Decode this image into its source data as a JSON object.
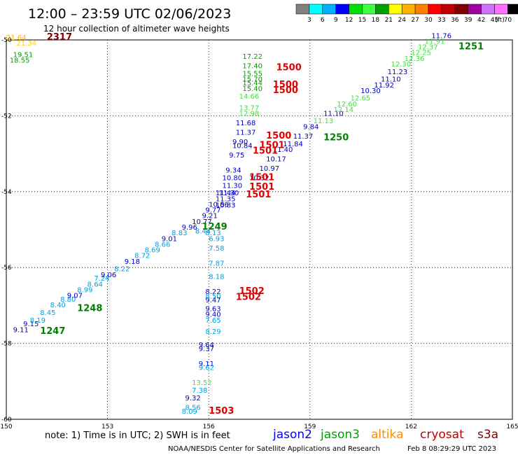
{
  "header": {
    "title": "12:00 – 23:59 UTC 02/06/2023",
    "subtitle": "12 hour collection of altimeter wave heights"
  },
  "legend": {
    "ticks": [
      "3",
      "6",
      "9",
      "12",
      "15",
      "18",
      "21",
      "24",
      "27",
      "30",
      "33",
      "36",
      "39",
      "42",
      "45",
      "70"
    ],
    "unit": "(ft)",
    "colors": [
      "#808080",
      "#00ffff",
      "#00b0ff",
      "#0000ff",
      "#00e000",
      "#40ff40",
      "#00a000",
      "#ffff00",
      "#ffb000",
      "#ff8000",
      "#ff0000",
      "#c00000",
      "#800000",
      "#a000a0",
      "#d070ff",
      "#ff70ff",
      "#000000"
    ]
  },
  "chart_data": {
    "type": "scatter",
    "xlim": [
      150,
      165
    ],
    "ylim": [
      -60,
      -50
    ],
    "xticks": [
      "150",
      "153",
      "156",
      "159",
      "162",
      "165"
    ],
    "yticks": [
      "-50",
      "-52",
      "-54",
      "-56",
      "-58",
      "-60"
    ],
    "grid": true,
    "tracks": [
      {
        "name": "1247",
        "color": "#008000",
        "label": {
          "text": "1247",
          "x": 151.0,
          "y": -57.75
        },
        "points": [
          {
            "lon": 150.2,
            "lat": -57.7,
            "v": "9.11",
            "c": "#0000c0"
          },
          {
            "lon": 150.5,
            "lat": -57.55,
            "v": "9.15",
            "c": "#0000c0"
          },
          {
            "lon": 150.7,
            "lat": -57.45,
            "v": "8.19",
            "c": "#00a0e0"
          },
          {
            "lon": 151.0,
            "lat": -57.25,
            "v": "8.45",
            "c": "#00a0e0"
          },
          {
            "lon": 151.3,
            "lat": -57.05,
            "v": "8.40",
            "c": "#00a0e0"
          },
          {
            "lon": 151.6,
            "lat": -56.9,
            "v": "8.80",
            "c": "#00a0e0"
          },
          {
            "lon": 151.8,
            "lat": -56.8,
            "v": "9.07",
            "c": "#0000c0"
          },
          {
            "lon": 152.1,
            "lat": -56.65,
            "v": "8.99",
            "c": "#00a0e0"
          },
          {
            "lon": 152.4,
            "lat": -56.5,
            "v": "8.64",
            "c": "#00a0e0"
          },
          {
            "lon": 152.6,
            "lat": -56.35,
            "v": "7.24",
            "c": "#00a0e0"
          },
          {
            "lon": 152.8,
            "lat": -56.25,
            "v": "9.06",
            "c": "#0000c0"
          },
          {
            "lon": 153.2,
            "lat": -56.1,
            "v": "8.22",
            "c": "#00a0e0"
          },
          {
            "lon": 153.5,
            "lat": -55.9,
            "v": "9.18",
            "c": "#0000c0"
          },
          {
            "lon": 153.8,
            "lat": -55.75,
            "v": "8.72",
            "c": "#00a0e0"
          },
          {
            "lon": 154.1,
            "lat": -55.6,
            "v": "8.69",
            "c": "#00a0e0"
          },
          {
            "lon": 154.4,
            "lat": -55.45,
            "v": "8.66",
            "c": "#00a0e0"
          },
          {
            "lon": 154.6,
            "lat": -55.3,
            "v": "9.01",
            "c": "#0000c0"
          },
          {
            "lon": 154.9,
            "lat": -55.15,
            "v": "8.83",
            "c": "#00a0e0"
          },
          {
            "lon": 155.2,
            "lat": -55.0,
            "v": "9.96",
            "c": "#0000c0"
          }
        ]
      },
      {
        "name": "1248",
        "color": "#008000",
        "label": {
          "text": "1248",
          "x": 152.1,
          "y": -57.15
        },
        "points": []
      },
      {
        "name": "1249",
        "color": "#008000",
        "label": {
          "text": "1249",
          "x": 155.8,
          "y": -55.0
        },
        "points": [
          {
            "lon": 155.5,
            "lat": -54.85,
            "v": "10.77",
            "c": "#0000c0"
          },
          {
            "lon": 155.8,
            "lat": -54.7,
            "v": "9.21",
            "c": "#0000c0"
          },
          {
            "lon": 155.9,
            "lat": -54.55,
            "v": "9.77",
            "c": "#0000c0"
          },
          {
            "lon": 156.0,
            "lat": -54.4,
            "v": "10.86",
            "c": "#0000c0"
          },
          {
            "lon": 156.2,
            "lat": -54.42,
            "v": "10.83",
            "c": "#0000c0"
          },
          {
            "lon": 156.2,
            "lat": -54.25,
            "v": "11.35",
            "c": "#0000c0"
          },
          {
            "lon": 156.2,
            "lat": -54.1,
            "v": "11.44",
            "c": "#0000c0"
          },
          {
            "lon": 156.3,
            "lat": -54.1,
            "v": "11.30",
            "c": "#0000c0"
          },
          {
            "lon": 156.4,
            "lat": -53.9,
            "v": "11.30",
            "c": "#0000c0"
          },
          {
            "lon": 156.4,
            "lat": -53.7,
            "v": "10.80",
            "c": "#0000c0"
          },
          {
            "lon": 156.5,
            "lat": -53.5,
            "v": "9.34",
            "c": "#0000c0"
          },
          {
            "lon": 156.6,
            "lat": -53.1,
            "v": "9.75",
            "c": "#0000c0"
          },
          {
            "lon": 156.7,
            "lat": -52.85,
            "v": "10.84",
            "c": "#0000c0"
          },
          {
            "lon": 156.7,
            "lat": -52.75,
            "v": "9.90",
            "c": "#0000c0"
          },
          {
            "lon": 156.8,
            "lat": -52.5,
            "v": "11.37",
            "c": "#0000c0"
          },
          {
            "lon": 156.8,
            "lat": -52.25,
            "v": "11.68",
            "c": "#0000c0"
          },
          {
            "lon": 156.9,
            "lat": -52.0,
            "v": "12.98",
            "c": "#40e040"
          },
          {
            "lon": 156.9,
            "lat": -51.85,
            "v": "13.77",
            "c": "#40e040"
          },
          {
            "lon": 156.9,
            "lat": -51.55,
            "v": "14.66",
            "c": "#40e040"
          },
          {
            "lon": 157.0,
            "lat": -51.35,
            "v": "15.40",
            "c": "#00a000"
          },
          {
            "lon": 157.0,
            "lat": -51.2,
            "v": "15.44",
            "c": "#00a000"
          },
          {
            "lon": 157.0,
            "lat": -51.1,
            "v": "15.70",
            "c": "#00a000"
          },
          {
            "lon": 157.0,
            "lat": -50.95,
            "v": "15.55",
            "c": "#00a000"
          },
          {
            "lon": 157.0,
            "lat": -50.75,
            "v": "17.40",
            "c": "#00a000"
          },
          {
            "lon": 157.0,
            "lat": -50.5,
            "v": "17.22",
            "c": "#00a000"
          },
          {
            "lon": 155.6,
            "lat": -55.1,
            "v": "8.44",
            "c": "#00a0e0"
          },
          {
            "lon": 155.9,
            "lat": -55.15,
            "v": "8.13",
            "c": "#00a0e0"
          },
          {
            "lon": 156.0,
            "lat": -55.3,
            "v": "6.93",
            "c": "#00a0e0"
          },
          {
            "lon": 156.0,
            "lat": -55.55,
            "v": "7.58",
            "c": "#00a0e0"
          },
          {
            "lon": 156.0,
            "lat": -55.95,
            "v": "7.87",
            "c": "#00a0e0"
          }
        ]
      },
      {
        "name": "1250",
        "color": "#008000",
        "label": {
          "text": "1250",
          "x": 159.4,
          "y": -52.65
        },
        "points": [
          {
            "lon": 157.2,
            "lat": -53.7,
            "v": "10.32",
            "c": "#0000c0"
          },
          {
            "lon": 157.5,
            "lat": -53.45,
            "v": "10.97",
            "c": "#0000c0"
          },
          {
            "lon": 157.7,
            "lat": -53.2,
            "v": "10.17",
            "c": "#0000c0"
          },
          {
            "lon": 157.9,
            "lat": -52.95,
            "v": "11.40",
            "c": "#0000c0"
          },
          {
            "lon": 158.2,
            "lat": -52.8,
            "v": "11.84",
            "c": "#0000c0"
          },
          {
            "lon": 158.5,
            "lat": -52.6,
            "v": "11.37",
            "c": "#0000c0"
          },
          {
            "lon": 158.8,
            "lat": -52.35,
            "v": "9.84",
            "c": "#0000c0"
          },
          {
            "lon": 159.1,
            "lat": -52.2,
            "v": "11.13",
            "c": "#40e040"
          },
          {
            "lon": 159.4,
            "lat": -52.0,
            "v": "11.10",
            "c": "#0000c0"
          },
          {
            "lon": 159.7,
            "lat": -51.9,
            "v": "12.14",
            "c": "#40e040"
          },
          {
            "lon": 159.8,
            "lat": -51.75,
            "v": "12.60",
            "c": "#40e040"
          },
          {
            "lon": 160.2,
            "lat": -51.6,
            "v": "12.65",
            "c": "#40e040"
          },
          {
            "lon": 160.5,
            "lat": -51.4,
            "v": "10.30",
            "c": "#0000c0"
          },
          {
            "lon": 160.9,
            "lat": -51.25,
            "v": "11.92",
            "c": "#0000c0"
          },
          {
            "lon": 161.1,
            "lat": -51.1,
            "v": "11.10",
            "c": "#0000c0"
          },
          {
            "lon": 161.3,
            "lat": -50.9,
            "v": "11.23",
            "c": "#0000c0"
          },
          {
            "lon": 161.4,
            "lat": -50.7,
            "v": "12.30",
            "c": "#40e040"
          },
          {
            "lon": 161.8,
            "lat": -50.55,
            "v": "12.36",
            "c": "#40e040"
          },
          {
            "lon": 162.0,
            "lat": -50.4,
            "v": "12.25",
            "c": "#40e040"
          },
          {
            "lon": 162.2,
            "lat": -50.25,
            "v": "12.37",
            "c": "#40e040"
          },
          {
            "lon": 162.4,
            "lat": -50.1,
            "v": "11.91",
            "c": "#40e040"
          },
          {
            "lon": 162.6,
            "lat": -49.95,
            "v": "11.76",
            "c": "#0000c0"
          }
        ]
      },
      {
        "name": "1251",
        "color": "#008000",
        "label": {
          "text": "1251",
          "x": 163.4,
          "y": -50.25
        },
        "points": []
      },
      {
        "name": "1500",
        "color": "#e00000",
        "label": {
          "text": "1500",
          "x": 158.0,
          "y": -50.8
        },
        "points": []
      },
      {
        "name": "1500b",
        "color": "#e00000",
        "label": {
          "text": "1500",
          "x": 157.9,
          "y": -51.25
        },
        "points": []
      },
      {
        "name": "1500c",
        "color": "#e00000",
        "label": {
          "text": "1500",
          "x": 157.9,
          "y": -51.4
        },
        "points": []
      },
      {
        "name": "1500d",
        "color": "#e00000",
        "label": {
          "text": "1500",
          "x": 157.7,
          "y": -52.6
        },
        "points": []
      },
      {
        "name": "1501",
        "color": "#e00000",
        "label": {
          "text": "1501",
          "x": 157.5,
          "y": -52.85
        },
        "points": []
      },
      {
        "name": "1501b",
        "color": "#e00000",
        "label": {
          "text": "1501",
          "x": 157.3,
          "y": -53.0
        },
        "points": []
      },
      {
        "name": "1501c",
        "color": "#e00000",
        "label": {
          "text": "1501",
          "x": 157.2,
          "y": -53.7
        },
        "points": []
      },
      {
        "name": "1501d",
        "color": "#e00000",
        "label": {
          "text": "1501",
          "x": 157.2,
          "y": -53.95
        },
        "points": []
      },
      {
        "name": "1501e",
        "color": "#e00000",
        "label": {
          "text": "1501",
          "x": 157.1,
          "y": -54.15
        },
        "points": []
      },
      {
        "name": "1502",
        "color": "#e00000",
        "label": {
          "text": "1502",
          "x": 156.9,
          "y": -56.7
        },
        "points": []
      },
      {
        "name": "1502b",
        "color": "#e00000",
        "label": {
          "text": "1502",
          "x": 156.8,
          "y": -56.85
        },
        "points": []
      },
      {
        "name": "1503",
        "color": "#e00000",
        "label": {
          "text": "1503",
          "x": 156.0,
          "y": -59.85
        },
        "points": [
          {
            "lon": 156.0,
            "lat": -56.3,
            "v": "8.18",
            "c": "#00a0e0"
          },
          {
            "lon": 155.9,
            "lat": -56.7,
            "v": "8.22",
            "c": "#0000c0"
          },
          {
            "lon": 155.9,
            "lat": -56.82,
            "v": "8.50",
            "c": "#00a0e0"
          },
          {
            "lon": 155.9,
            "lat": -56.92,
            "v": "9.47",
            "c": "#0000c0"
          },
          {
            "lon": 155.9,
            "lat": -57.15,
            "v": "9.63",
            "c": "#0000c0"
          },
          {
            "lon": 155.9,
            "lat": -57.3,
            "v": "9.40",
            "c": "#0000c0"
          },
          {
            "lon": 155.9,
            "lat": -57.45,
            "v": "7.65",
            "c": "#00a0e0"
          },
          {
            "lon": 155.9,
            "lat": -57.75,
            "v": "8.29",
            "c": "#00a0e0"
          },
          {
            "lon": 155.7,
            "lat": -58.1,
            "v": "9.64",
            "c": "#0000c0"
          },
          {
            "lon": 155.7,
            "lat": -58.2,
            "v": "9.37",
            "c": "#0000c0"
          },
          {
            "lon": 155.7,
            "lat": -58.6,
            "v": "9.11",
            "c": "#0000c0"
          },
          {
            "lon": 155.7,
            "lat": -58.7,
            "v": "9.62",
            "c": "#00a0e0"
          },
          {
            "lon": 155.5,
            "lat": -59.1,
            "v": "13.52",
            "c": "#40e040"
          },
          {
            "lon": 155.5,
            "lat": -59.3,
            "v": "7.38",
            "c": "#00a0e0"
          },
          {
            "lon": 155.3,
            "lat": -59.5,
            "v": "9.32",
            "c": "#0000c0"
          },
          {
            "lon": 155.3,
            "lat": -59.75,
            "v": "8.56",
            "c": "#00a0e0"
          },
          {
            "lon": 155.2,
            "lat": -59.85,
            "v": "8.09",
            "c": "#00a0e0"
          }
        ]
      },
      {
        "name": "2317",
        "color": "#800000",
        "label": {
          "text": "2317",
          "x": 151.2,
          "y": -50.0
        },
        "points": [
          {
            "lon": 150.0,
            "lat": -50.0,
            "v": "21.64",
            "c": "#ffb000"
          },
          {
            "lon": 150.3,
            "lat": -50.15,
            "v": "21.34",
            "c": "#ffd000"
          },
          {
            "lon": 150.2,
            "lat": -50.45,
            "v": "19.51",
            "c": "#00a000"
          },
          {
            "lon": 150.1,
            "lat": -50.6,
            "v": "18.55",
            "c": "#00a000"
          }
        ]
      }
    ]
  },
  "footer": {
    "note": "note: 1) Time is in UTC; 2) SWH is in feet",
    "satellites": [
      {
        "name": "jason2",
        "color": "#0000ff"
      },
      {
        "name": "jason3",
        "color": "#00a000"
      },
      {
        "name": "altika",
        "color": "#ff8c00"
      },
      {
        "name": "cryosat",
        "color": "#c00000"
      },
      {
        "name": "s3a",
        "color": "#800000"
      }
    ],
    "credit": "NOAA/NESDIS Center for Satellite Applications and Research",
    "timestamp": "Feb  8 08:29:29 UTC 2023"
  }
}
